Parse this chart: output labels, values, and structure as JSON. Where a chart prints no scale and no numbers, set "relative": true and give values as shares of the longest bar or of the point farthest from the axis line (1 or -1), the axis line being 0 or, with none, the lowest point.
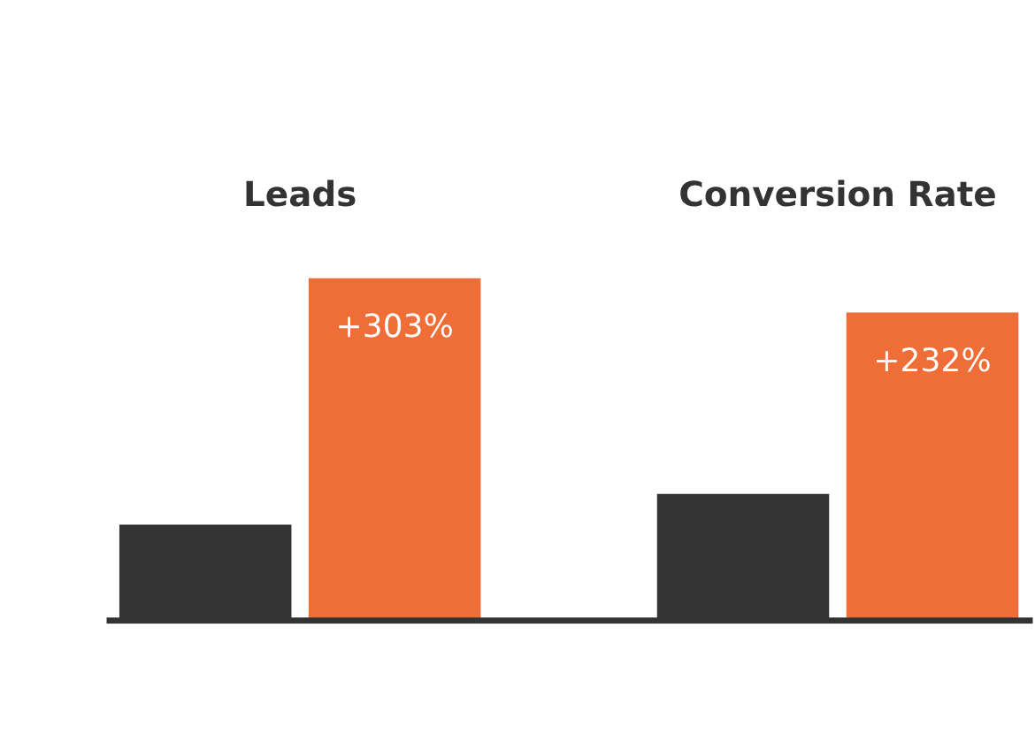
{
  "chart_data": {
    "type": "bar",
    "categories": [
      "Leads",
      "Conversion Rate"
    ],
    "relative": true,
    "series": [
      {
        "color": "#333333",
        "values": [
          0.28,
          0.37
        ]
      },
      {
        "color": "#ef6d36",
        "values": [
          1,
          0.9
        ]
      }
    ],
    "annotations": [
      "+303%",
      "+232%"
    ]
  }
}
